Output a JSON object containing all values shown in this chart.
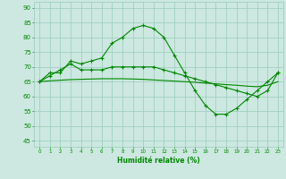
{
  "x": [
    0,
    1,
    2,
    3,
    4,
    5,
    6,
    7,
    8,
    9,
    10,
    11,
    12,
    13,
    14,
    15,
    16,
    17,
    18,
    19,
    20,
    21,
    22,
    23
  ],
  "line1": [
    65,
    68,
    68,
    72,
    71,
    72,
    73,
    78,
    80,
    83,
    84,
    83,
    80,
    74,
    68,
    62,
    57,
    54,
    54,
    56,
    59,
    62,
    65,
    68
  ],
  "line2": [
    65,
    67,
    69,
    71,
    69,
    69,
    69,
    70,
    70,
    70,
    70,
    70,
    69,
    68,
    67,
    66,
    65,
    64,
    63,
    62,
    61,
    60,
    62,
    68
  ],
  "line3": [
    65,
    65.3,
    65.5,
    65.7,
    65.8,
    65.9,
    66.0,
    66.0,
    66.0,
    65.9,
    65.8,
    65.6,
    65.4,
    65.2,
    65.0,
    64.8,
    64.5,
    64.3,
    64.0,
    63.8,
    63.5,
    63.3,
    63.8,
    65
  ],
  "bg_color": "#cce8e0",
  "grid_major_color": "#99ccbb",
  "grid_minor_color": "#bbddcc",
  "line_color": "#008800",
  "xlabel": "Humidité relative (%)",
  "ylim": [
    43,
    92
  ],
  "yticks": [
    45,
    50,
    55,
    60,
    65,
    70,
    75,
    80,
    85,
    90
  ],
  "xlim": [
    -0.5,
    23.5
  ],
  "xticks": [
    0,
    1,
    2,
    3,
    4,
    5,
    6,
    7,
    8,
    9,
    10,
    11,
    12,
    13,
    14,
    15,
    16,
    17,
    18,
    19,
    20,
    21,
    22,
    23
  ]
}
